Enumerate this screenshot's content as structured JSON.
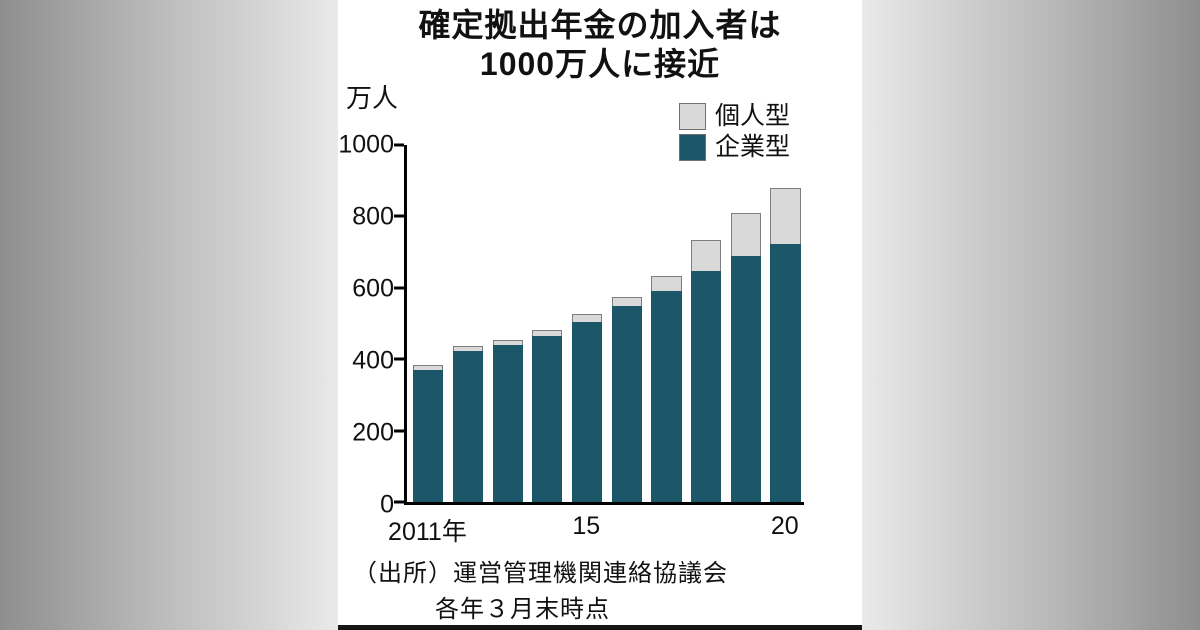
{
  "chart": {
    "title_line1": "確定拠出年金の加入者は",
    "title_line2": "1000万人に接近",
    "unit_label": "万人",
    "source": "（出所）運営管理機関連絡協議会",
    "note": "各年３月末時点"
  },
  "chart_data": {
    "type": "bar",
    "stacked": true,
    "title": "確定拠出年金の加入者は1000万人に接近",
    "xlabel": "",
    "ylabel": "万人",
    "ylim": [
      0,
      1000
    ],
    "yticks": [
      0,
      200,
      400,
      600,
      800,
      1000
    ],
    "grid": false,
    "legend_position": "top-right",
    "categories": [
      "2011",
      "2012",
      "2013",
      "2014",
      "2015",
      "2016",
      "2017",
      "2018",
      "2019",
      "2020"
    ],
    "series": [
      {
        "name": "企業型",
        "color": "#1b5769",
        "values": [
          371,
          422,
          439,
          464,
          505,
          548,
          591,
          648,
          688,
          723
        ]
      },
      {
        "name": "個人型",
        "color": "#d9d9d9",
        "values": [
          13,
          14,
          16,
          18,
          21,
          26,
          43,
          86,
          121,
          156
        ]
      }
    ],
    "totals": [
      384,
      436,
      455,
      482,
      526,
      574,
      634,
      734,
      809,
      879
    ],
    "x_tick_labels": [
      {
        "index": 0,
        "label": "2011年"
      },
      {
        "index": 4,
        "label": "15"
      },
      {
        "index": 9,
        "label": "20"
      }
    ],
    "legend": [
      {
        "label": "個人型",
        "color": "#d9d9d9"
      },
      {
        "label": "企業型",
        "color": "#1b5769"
      }
    ]
  },
  "colors": {
    "bar_dark": "#1b5769",
    "bar_light": "#d9d9d9",
    "axis": "#000000",
    "panel_bg": "#ffffff",
    "side_bg": "#8e8e8e"
  }
}
